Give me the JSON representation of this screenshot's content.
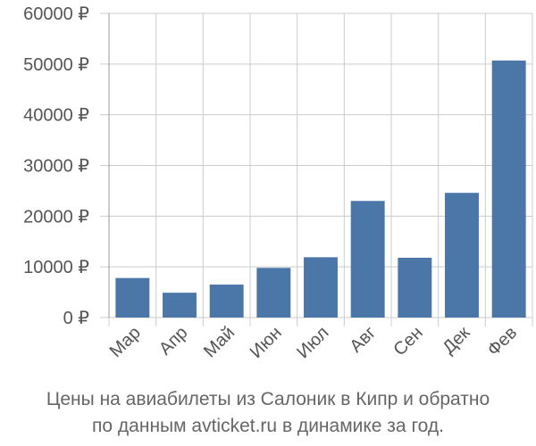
{
  "chart_data": {
    "type": "bar",
    "categories": [
      "Мар",
      "Апр",
      "Май",
      "Июн",
      "Июл",
      "Авг",
      "Сен",
      "Дек",
      "Фев"
    ],
    "values": [
      7800,
      4900,
      6500,
      9800,
      11900,
      23000,
      11800,
      24600,
      50700
    ],
    "ylim": [
      0,
      60000
    ],
    "yticks": [
      0,
      10000,
      20000,
      30000,
      40000,
      50000,
      60000
    ],
    "tick_suffix": " ₽",
    "grid": true,
    "bar_color": "#4a76a8",
    "grid_color": "#cccccc"
  },
  "caption": {
    "line1": "Цены на авиабилеты из Салоник в Кипр и обратно",
    "line2": "по данным avticket.ru в динамике за год."
  }
}
